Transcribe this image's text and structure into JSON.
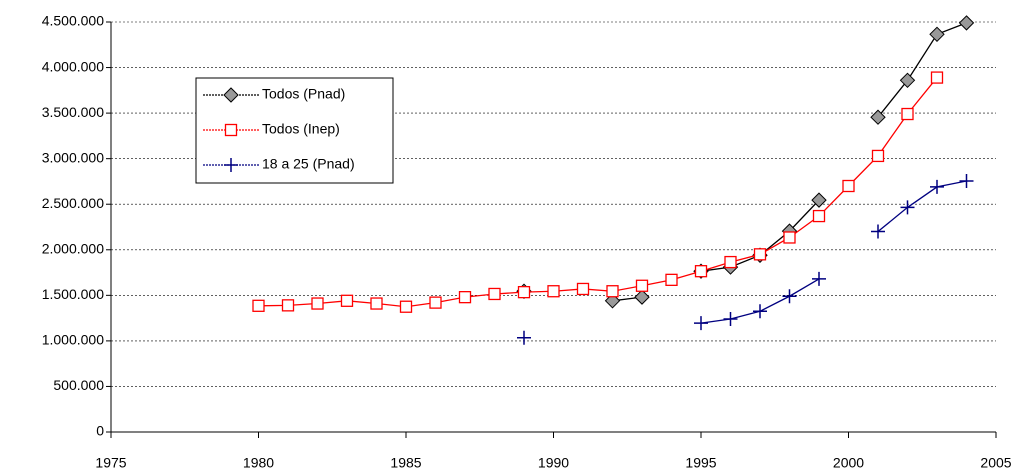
{
  "chart_data": {
    "type": "line",
    "x": [
      1980,
      1981,
      1982,
      1983,
      1984,
      1985,
      1986,
      1987,
      1988,
      1989,
      1990,
      1991,
      1992,
      1993,
      1994,
      1995,
      1996,
      1997,
      1998,
      1999,
      2000,
      2001,
      2002,
      2003,
      2004
    ],
    "series": [
      {
        "name": "Todos (Pnad)",
        "color": "#000000",
        "fill": "#999999",
        "marker": "diamond",
        "values": [
          null,
          null,
          null,
          null,
          null,
          null,
          null,
          null,
          null,
          1545000,
          null,
          null,
          1440000,
          1480000,
          null,
          1765000,
          1810000,
          1940000,
          2205000,
          2545000,
          null,
          3455000,
          3860000,
          4365000,
          4490000
        ]
      },
      {
        "name": "Todos (Inep)",
        "color": "#ff0000",
        "fill": "#ffffff",
        "marker": "square",
        "values": [
          1385000,
          1390000,
          1410000,
          1440000,
          1410000,
          1375000,
          1420000,
          1480000,
          1515000,
          1535000,
          1545000,
          1570000,
          1545000,
          1605000,
          1670000,
          1765000,
          1865000,
          1950000,
          2135000,
          2370000,
          2700000,
          3030000,
          3490000,
          3890000,
          null
        ]
      },
      {
        "name": "18 a 25 (Pnad)",
        "color": "#000080",
        "fill": "none",
        "marker": "plus",
        "values": [
          null,
          null,
          null,
          null,
          null,
          null,
          null,
          null,
          null,
          1035000,
          null,
          null,
          null,
          null,
          null,
          1195000,
          1240000,
          1325000,
          1490000,
          1680000,
          null,
          2200000,
          2465000,
          2690000,
          2755000
        ]
      }
    ],
    "xlim": [
      1975,
      2005
    ],
    "xticks": [
      1975,
      1980,
      1985,
      1990,
      1995,
      2000,
      2005
    ],
    "ylim": [
      0,
      4500000
    ],
    "yticks": [
      0,
      {
        "value": 500000,
        "label": "500.000"
      },
      {
        "value": 1000000,
        "label": "1.000.000"
      },
      {
        "value": 1500000,
        "label": "1.500.000"
      },
      {
        "value": 2000000,
        "label": "2.000.000"
      },
      {
        "value": 2500000,
        "label": "2.500.000"
      },
      {
        "value": 3000000,
        "label": "3.000.000"
      },
      {
        "value": 3500000,
        "label": "3.500.000"
      },
      {
        "value": 4000000,
        "label": "4.000.000"
      },
      {
        "value": 4500000,
        "label": "4.500.000"
      }
    ],
    "grid": true,
    "legend": "upper-left"
  }
}
